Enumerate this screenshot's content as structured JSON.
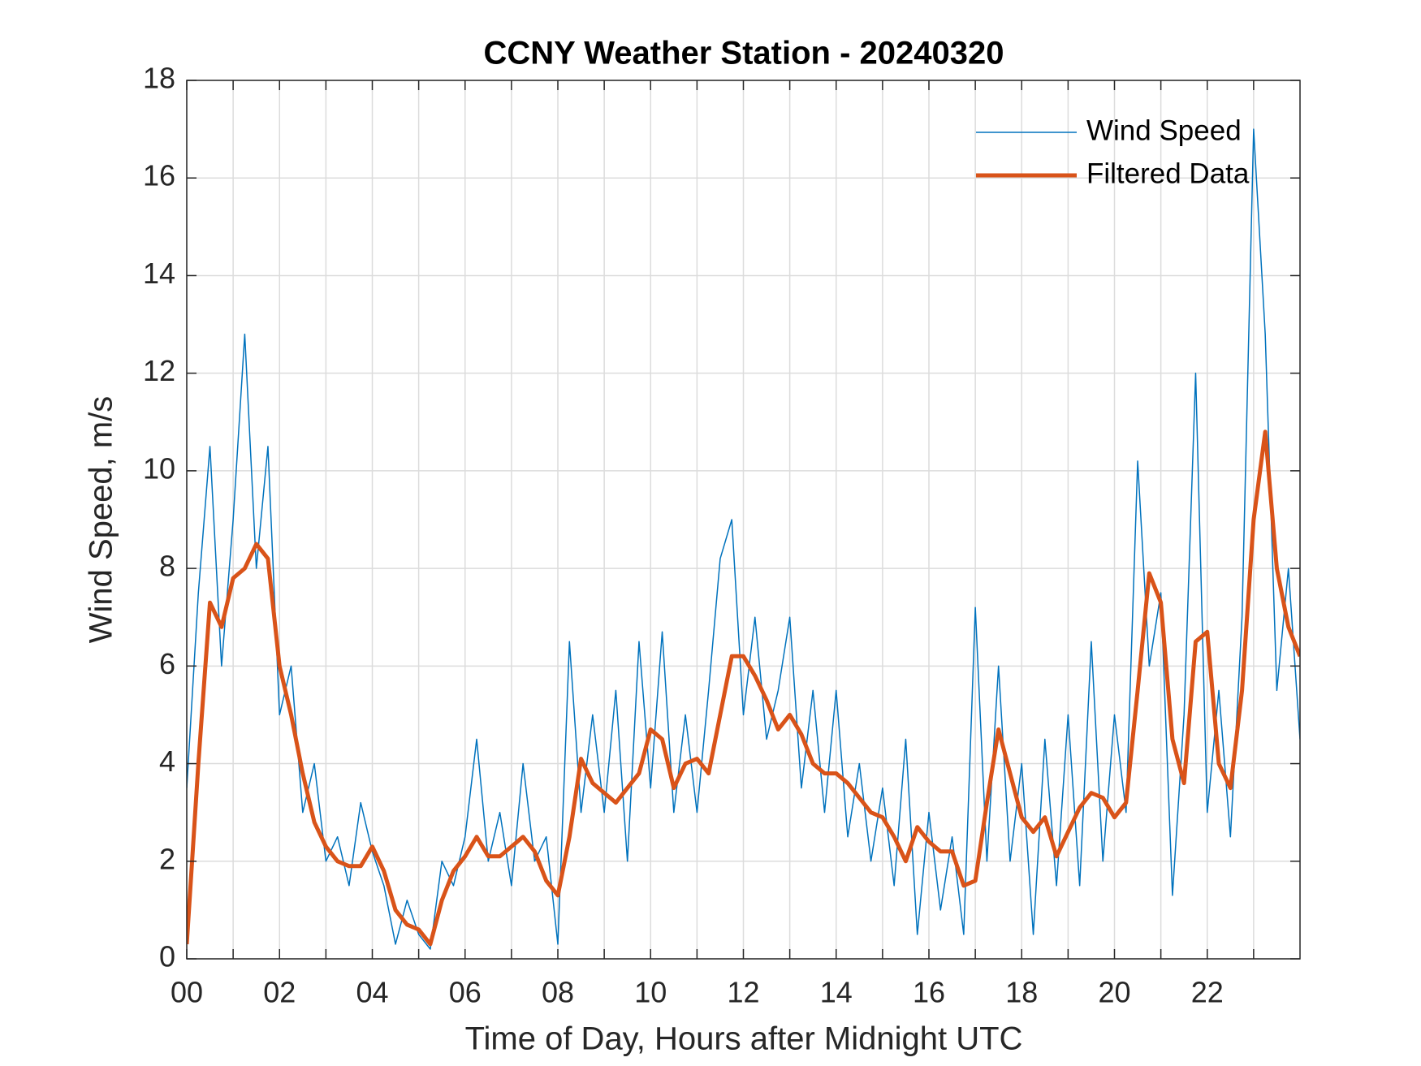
{
  "chart_data": {
    "type": "line",
    "title": "CCNY Weather Station - 20240320",
    "xlabel": "Time of Day, Hours after Midnight UTC",
    "ylabel": "Wind Speed, m/s",
    "x": [
      0,
      0.25,
      0.5,
      0.75,
      1,
      1.25,
      1.5,
      1.75,
      2,
      2.25,
      2.5,
      2.75,
      3,
      3.25,
      3.5,
      3.75,
      4,
      4.25,
      4.5,
      4.75,
      5,
      5.25,
      5.5,
      5.75,
      6,
      6.25,
      6.5,
      6.75,
      7,
      7.25,
      7.5,
      7.75,
      8,
      8.25,
      8.5,
      8.75,
      9,
      9.25,
      9.5,
      9.75,
      10,
      10.25,
      10.5,
      10.75,
      11,
      11.25,
      11.5,
      11.75,
      12,
      12.25,
      12.5,
      12.75,
      13,
      13.25,
      13.5,
      13.75,
      14,
      14.25,
      14.5,
      14.75,
      15,
      15.25,
      15.5,
      15.75,
      16,
      16.25,
      16.5,
      16.75,
      17,
      17.25,
      17.5,
      17.75,
      18,
      18.25,
      18.5,
      18.75,
      19,
      19.25,
      19.5,
      19.75,
      20,
      20.25,
      20.5,
      20.75,
      21,
      21.25,
      21.5,
      21.75,
      22,
      22.25,
      22.5,
      22.75,
      23,
      23.25,
      23.5,
      23.75,
      24
    ],
    "series": [
      {
        "name": "Wind Speed",
        "color": "#0072BD",
        "width": 1.5,
        "values": [
          3.5,
          7.5,
          10.5,
          6,
          9,
          12.8,
          8,
          10.5,
          5,
          6,
          3,
          4,
          2,
          2.5,
          1.5,
          3.2,
          2.2,
          1.5,
          0.3,
          1.2,
          0.5,
          0.2,
          2,
          1.5,
          2.5,
          4.5,
          2,
          3,
          1.5,
          4,
          2,
          2.5,
          0.3,
          6.5,
          3,
          5,
          3,
          5.5,
          2,
          6.5,
          3.5,
          6.7,
          3,
          5,
          3,
          5.5,
          8.2,
          9,
          5,
          7,
          4.5,
          5.5,
          7,
          3.5,
          5.5,
          3,
          5.5,
          2.5,
          4,
          2,
          3.5,
          1.5,
          4.5,
          0.5,
          3,
          1,
          2.5,
          0.5,
          7.2,
          2,
          6,
          2,
          4,
          0.5,
          4.5,
          1.5,
          5,
          1.5,
          6.5,
          2,
          5,
          3,
          10.2,
          6,
          7.5,
          1.3,
          5,
          12,
          3,
          5.5,
          2.5,
          7,
          17,
          12.8,
          5.5,
          8,
          4.5
        ]
      },
      {
        "name": "Filtered Data",
        "color": "#D95319",
        "width": 5,
        "values": [
          0.3,
          4,
          7.3,
          6.8,
          7.8,
          8,
          8.5,
          8.2,
          6,
          5,
          3.8,
          2.8,
          2.3,
          2,
          1.9,
          1.9,
          2.3,
          1.8,
          1,
          0.7,
          0.6,
          0.3,
          1.2,
          1.8,
          2.1,
          2.5,
          2.1,
          2.1,
          2.3,
          2.5,
          2.2,
          1.6,
          1.3,
          2.5,
          4.1,
          3.6,
          3.4,
          3.2,
          3.5,
          3.8,
          4.7,
          4.5,
          3.5,
          4,
          4.1,
          3.8,
          5,
          6.2,
          6.2,
          5.8,
          5.3,
          4.7,
          5,
          4.6,
          4,
          3.8,
          3.8,
          3.6,
          3.3,
          3,
          2.9,
          2.5,
          2,
          2.7,
          2.4,
          2.2,
          2.2,
          1.5,
          1.6,
          3.2,
          4.7,
          3.8,
          2.9,
          2.6,
          2.9,
          2.1,
          2.6,
          3.1,
          3.4,
          3.3,
          2.9,
          3.2,
          5.5,
          7.9,
          7.3,
          4.5,
          3.6,
          6.5,
          6.7,
          4,
          3.5,
          5.5,
          9,
          10.8,
          8,
          6.8,
          6.2
        ]
      }
    ],
    "xlim": [
      0,
      24
    ],
    "xticks": [
      {
        "value": 0,
        "label": "00"
      },
      {
        "value": 2,
        "label": "02"
      },
      {
        "value": 4,
        "label": "04"
      },
      {
        "value": 6,
        "label": "06"
      },
      {
        "value": 8,
        "label": "08"
      },
      {
        "value": 10,
        "label": "10"
      },
      {
        "value": 12,
        "label": "12"
      },
      {
        "value": 14,
        "label": "14"
      },
      {
        "value": 16,
        "label": "16"
      },
      {
        "value": 18,
        "label": "18"
      },
      {
        "value": 20,
        "label": "20"
      },
      {
        "value": 22,
        "label": "22"
      }
    ],
    "xminor_ticks": [
      1,
      3,
      5,
      7,
      9,
      11,
      13,
      15,
      17,
      19,
      21,
      23
    ],
    "ylim": [
      0,
      18
    ],
    "yticks": [
      0,
      2,
      4,
      6,
      8,
      10,
      12,
      14,
      16,
      18
    ],
    "grid": true,
    "legend": "top-right"
  }
}
